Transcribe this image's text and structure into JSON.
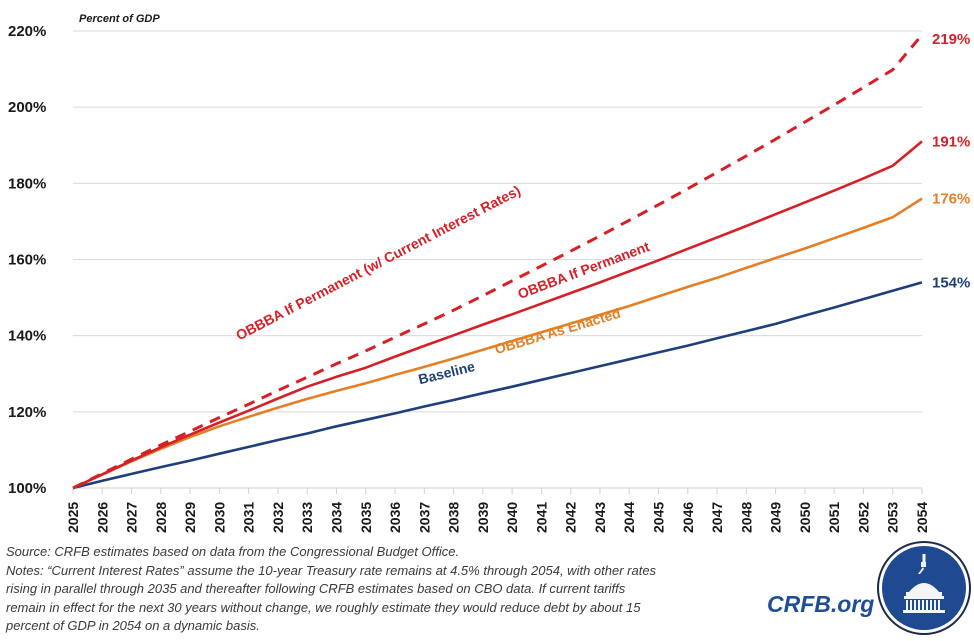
{
  "chart_data": {
    "type": "line",
    "title": "",
    "unit_label": "Percent of GDP",
    "xlabel": "",
    "ylabel": "",
    "x": [
      2025,
      2026,
      2027,
      2028,
      2029,
      2030,
      2031,
      2032,
      2033,
      2034,
      2035,
      2036,
      2037,
      2038,
      2039,
      2040,
      2041,
      2042,
      2043,
      2044,
      2045,
      2046,
      2047,
      2048,
      2049,
      2050,
      2051,
      2052,
      2053,
      2054
    ],
    "xlim": [
      2025,
      2054
    ],
    "ylim": [
      100,
      220
    ],
    "yticks": [
      100,
      120,
      140,
      160,
      180,
      200,
      220
    ],
    "ytick_labels": [
      "100%",
      "120%",
      "140%",
      "160%",
      "180%",
      "200%",
      "220%"
    ],
    "grid": true,
    "legend": "inline labels along lines",
    "series": [
      {
        "name": "Baseline",
        "color": "#1f3f7a",
        "style": "solid",
        "end_label": "154%",
        "values": [
          100,
          101.9,
          103.7,
          105.5,
          107.2,
          109,
          110.8,
          112.6,
          114.3,
          116.2,
          117.9,
          119.6,
          121.4,
          123.1,
          124.9,
          126.6,
          128.4,
          130.2,
          132,
          133.8,
          135.6,
          137.4,
          139.3,
          141.2,
          143.1,
          145.3,
          147.4,
          149.6,
          151.8,
          154
        ]
      },
      {
        "name": "OBBBA As Enacted",
        "color": "#e57f25",
        "style": "solid",
        "end_label": "176%",
        "values": [
          100,
          103.5,
          107,
          110.3,
          113.4,
          116.2,
          118.7,
          121.1,
          123.4,
          125.5,
          127.5,
          129.7,
          131.8,
          134,
          136.3,
          138.6,
          140.9,
          143.2,
          145.5,
          147.8,
          150.3,
          152.8,
          155.2,
          157.8,
          160.4,
          162.9,
          165.6,
          168.3,
          171.1,
          176
        ]
      },
      {
        "name": "OBBBA If Permanent",
        "color": "#d62028",
        "style": "solid",
        "end_label": "191%",
        "values": [
          100,
          103.6,
          107.2,
          110.7,
          114,
          117.2,
          120.3,
          123.5,
          126.6,
          129.2,
          131.6,
          134.5,
          137.3,
          140.1,
          142.9,
          145.6,
          148.4,
          151.2,
          154,
          156.9,
          159.8,
          162.8,
          165.8,
          168.8,
          171.9,
          175,
          178.1,
          181.3,
          184.6,
          191
        ]
      },
      {
        "name": "OBBBA If Permanent (w/ Current Interest Rates)",
        "color": "#d62028",
        "style": "dashed",
        "end_label": "219%",
        "values": [
          100,
          103.8,
          107.6,
          111.3,
          114.9,
          118.5,
          122,
          125.6,
          129.1,
          132.6,
          136,
          139.6,
          143.1,
          146.7,
          150.5,
          154.4,
          158.3,
          162.2,
          166.2,
          170.3,
          174.4,
          178.6,
          182.9,
          187.2,
          191.6,
          196.1,
          200.6,
          205.2,
          209.8,
          219
        ]
      }
    ]
  },
  "footer": {
    "lines": [
      "Source: CRFB estimates based on data from the Congressional Budget Office.",
      "Notes: “Current Interest Rates” assume the 10-year Treasury rate remains at 4.5% through 2054, with other rates",
      "rising in parallel through 2035 and thereafter following CRFB estimates based on CBO data. If current tariffs",
      "remain in effect for the next 30 years without change, we roughly estimate they would reduce debt by about 15",
      "percent of GDP in 2054 on a dynamic basis."
    ],
    "brand": "CRFB.org",
    "logo": "capitol-dome-seal-icon"
  }
}
